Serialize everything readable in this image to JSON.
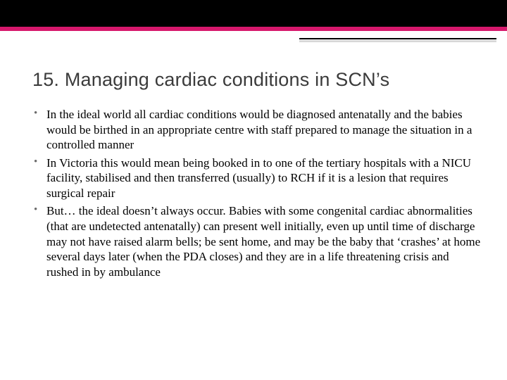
{
  "slide": {
    "title": "15. Managing cardiac conditions in SCN’s",
    "bullets": [
      "In the ideal world all cardiac conditions would be diagnosed antenatally and the babies would be birthed in an appropriate centre with staff prepared to manage the situation in a controlled manner",
      "In Victoria this would mean being booked in to one of the tertiary hospitals with a NICU facility, stabilised and then transferred (usually) to RCH if it is a lesion that requires surgical repair",
      "But… the ideal doesn’t always occur.  Babies with some congenital cardiac abnormalities (that are undetected antenatally) can present well initially, even up until time of discharge may not have raised alarm bells; be sent home, and may be the baby that ‘crashes’ at home several days later (when the PDA closes) and they are in a life threatening crisis and rushed in by ambulance"
    ]
  },
  "theme": {
    "accent_color": "#d6186c",
    "header_bar_color": "#000000",
    "background": "#ffffff",
    "title_font": "Trebuchet MS",
    "body_font": "Georgia",
    "title_fontsize": 27,
    "body_fontsize": 17
  }
}
